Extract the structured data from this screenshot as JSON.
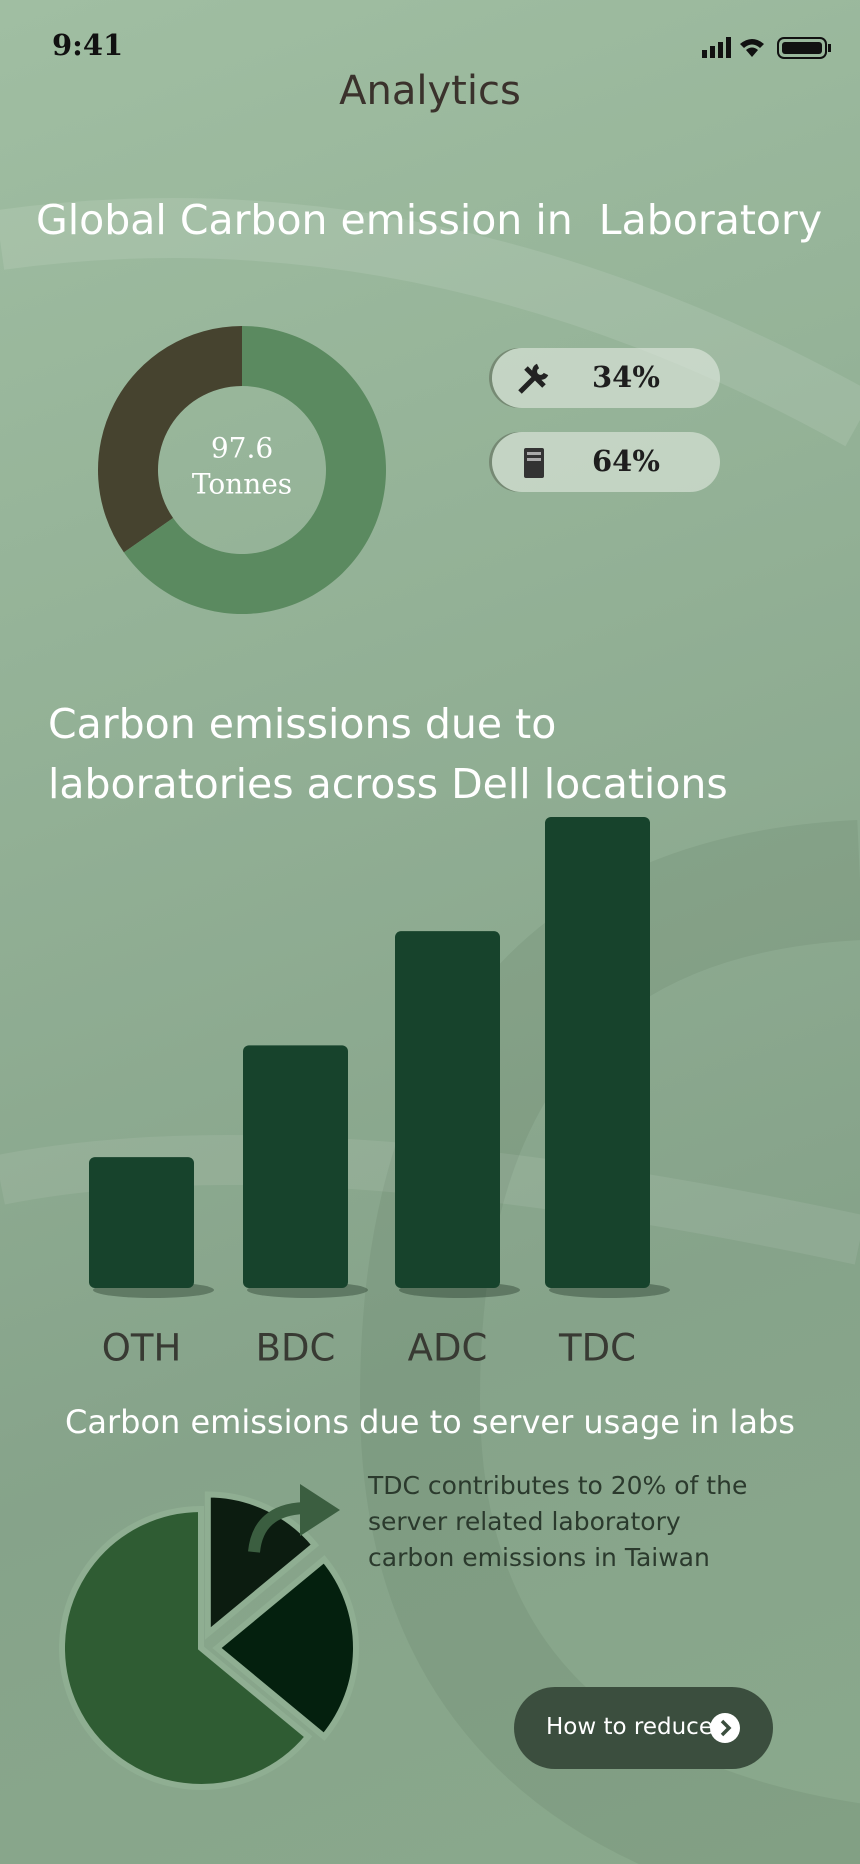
{
  "status_bar": {
    "time": "9:41"
  },
  "header": {
    "title": "Analytics"
  },
  "chart_data": [
    {
      "type": "donut",
      "title": "Global Carbon emission in  Laboratory",
      "center_value": 97.6,
      "center_label": "Tonnes",
      "values": [
        34,
        64
      ],
      "value_labels": [
        "34%",
        "64%"
      ],
      "colors": [
        "#46432f",
        "#5b8a60"
      ]
    },
    {
      "type": "bar",
      "title": "Carbon emissions due to laboratories across Dell locations",
      "categories": [
        "OTH",
        "BDC",
        "ADC",
        "TDC"
      ],
      "values": [
        110,
        204,
        300,
        396
      ],
      "color": "#17432c"
    },
    {
      "type": "pie",
      "title": "Carbon emissions due to server usage in labs",
      "values": [
        14,
        22,
        64
      ],
      "colors": [
        "#0c1c10",
        "#04200e",
        "#2f5c33"
      ],
      "annotation": "TDC contributes to 20% of the server related laboratory carbon emissions in Taiwan"
    }
  ],
  "button": {
    "label": "How to reduce"
  }
}
